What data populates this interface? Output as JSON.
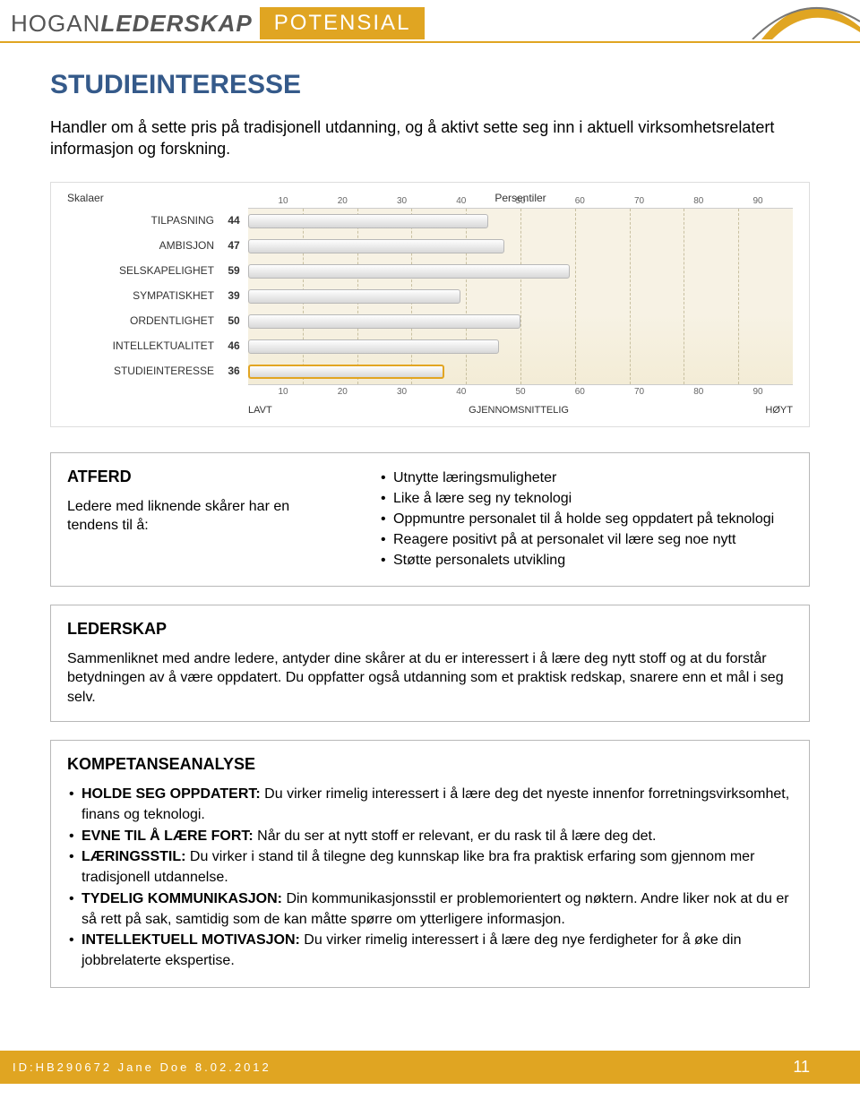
{
  "header": {
    "brand_light": "HOGAN",
    "brand_bold": "LEDERSKAP",
    "badge": "POTENSIAL"
  },
  "page_title": "STUDIEINTERESSE",
  "intro": "Handler om å sette pris på tradisjonell utdanning, og å aktivt sette seg inn i aktuell virksomhetsrelatert informasjon og forskning.",
  "chart": {
    "label_skalaer": "Skalaer",
    "label_persentiler": "Persentiler",
    "ticks": [
      "10",
      "20",
      "30",
      "40",
      "50",
      "60",
      "70",
      "80",
      "90"
    ],
    "rows": [
      {
        "label": "TILPASNING",
        "value": 44,
        "highlight": false
      },
      {
        "label": "AMBISJON",
        "value": 47,
        "highlight": false
      },
      {
        "label": "SELSKAPELIGHET",
        "value": 59,
        "highlight": false
      },
      {
        "label": "SYMPATISKHET",
        "value": 39,
        "highlight": false
      },
      {
        "label": "ORDENTLIGHET",
        "value": 50,
        "highlight": false
      },
      {
        "label": "INTELLEKTUALITET",
        "value": 46,
        "highlight": false
      },
      {
        "label": "STUDIEINTERESSE",
        "value": 36,
        "highlight": true
      }
    ],
    "legend": {
      "low": "LAVT",
      "mid": "GJENNOMSNITTELIG",
      "high": "HØYT"
    }
  },
  "atferd": {
    "title": "ATFERD",
    "lead": "Ledere med liknende skårer har en tendens til å:",
    "items": [
      "Utnytte læringsmuligheter",
      "Like å lære seg ny teknologi",
      "Oppmuntre personalet til å holde seg oppdatert på teknologi",
      "Reagere positivt på at personalet vil lære seg noe nytt",
      "Støtte personalets utvikling"
    ]
  },
  "lederskap": {
    "title": "LEDERSKAP",
    "body": "Sammenliknet med andre ledere, antyder dine skårer at du er interessert i å lære deg nytt stoff og at du forstår betydningen av å være oppdatert. Du oppfatter også utdanning som et praktisk redskap, snarere enn et mål i seg selv."
  },
  "kompetanse": {
    "title": "KOMPETANSEANALYSE",
    "items": [
      {
        "lead": "HOLDE SEG OPPDATERT:",
        "text": " Du virker rimelig interessert i å lære deg det nyeste innenfor forretningsvirksomhet, finans og teknologi."
      },
      {
        "lead": "EVNE TIL Å LÆRE FORT:",
        "text": " Når du ser at nytt stoff er relevant, er du rask til å lære deg det."
      },
      {
        "lead": "LÆRINGSSTIL:",
        "text": " Du virker i stand til å tilegne deg kunnskap like bra fra praktisk erfaring som gjennom mer tradisjonell utdannelse."
      },
      {
        "lead": "TYDELIG KOMMUNIKASJON:",
        "text": " Din kommunikasjonsstil er problemorientert og nøktern. Andre liker nok at du er så rett på sak, samtidig som de kan måtte spørre om ytterligere informasjon."
      },
      {
        "lead": "INTELLEKTUELL MOTIVASJON:",
        "text": " Du virker rimelig interessert i å lære deg nye ferdigheter for å øke din jobbrelaterte ekspertise."
      }
    ]
  },
  "footer": {
    "id_line": "ID:HB290672 Jane Doe 8.02.2012",
    "page": "11"
  },
  "colors": {
    "accent": "#e0a522",
    "title": "#355a8a"
  }
}
